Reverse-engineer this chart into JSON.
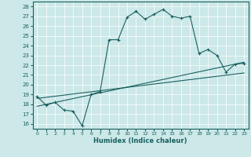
{
  "xlabel": "Humidex (Indice chaleur)",
  "ylabel": "",
  "bg_color": "#cce8e8",
  "line_color": "#1a6060",
  "xlim": [
    -0.5,
    23.5
  ],
  "ylim": [
    15.5,
    28.5
  ],
  "x_ticks": [
    0,
    1,
    2,
    3,
    4,
    5,
    6,
    7,
    8,
    9,
    10,
    11,
    12,
    13,
    14,
    15,
    16,
    17,
    18,
    19,
    20,
    21,
    22,
    23
  ],
  "y_ticks": [
    16,
    17,
    18,
    19,
    20,
    21,
    22,
    23,
    24,
    25,
    26,
    27,
    28
  ],
  "humidex_x": [
    0,
    1,
    2,
    3,
    4,
    5,
    6,
    7,
    8,
    9,
    10,
    11,
    12,
    13,
    14,
    15,
    16,
    17,
    18,
    19,
    20,
    21,
    22,
    23
  ],
  "humidex_y": [
    18.8,
    17.9,
    18.2,
    17.4,
    17.3,
    15.8,
    19.0,
    19.3,
    24.6,
    24.6,
    26.9,
    27.5,
    26.7,
    27.2,
    27.7,
    27.0,
    26.8,
    27.0,
    23.2,
    23.6,
    23.0,
    21.3,
    22.1,
    22.2
  ],
  "trend1_x": [
    0,
    23
  ],
  "trend1_y": [
    17.8,
    22.3
  ],
  "trend2_x": [
    0,
    23
  ],
  "trend2_y": [
    18.6,
    21.2
  ]
}
